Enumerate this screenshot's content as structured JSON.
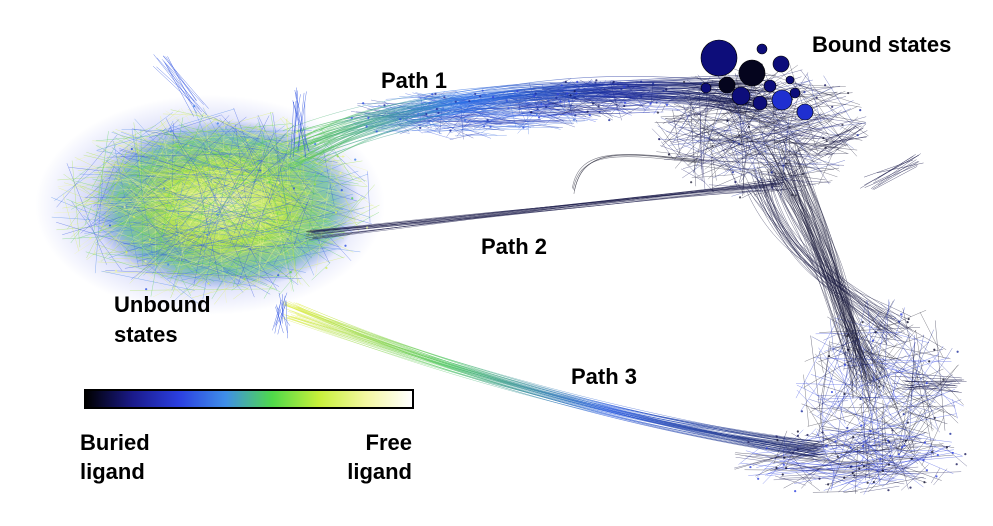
{
  "labels": {
    "path1": "Path 1",
    "path2": "Path 2",
    "path3": "Path 3",
    "bound": "Bound states",
    "unbound": [
      "Unbound",
      "states"
    ]
  },
  "colorbar": {
    "low_label": [
      "Buried",
      "ligand"
    ],
    "high_label": [
      "Free",
      "ligand"
    ],
    "gradient": [
      "#000000",
      "#1a1a8a",
      "#2b3fe0",
      "#3f8fe8",
      "#4fd94a",
      "#c7f03a",
      "#f3f7a0",
      "#ffffff"
    ]
  },
  "colors": {
    "bound_nodes": "#0d0d7a",
    "bound_nodes_dark": "#05051e",
    "bound_nodes_light": "#1f2fd0"
  }
}
